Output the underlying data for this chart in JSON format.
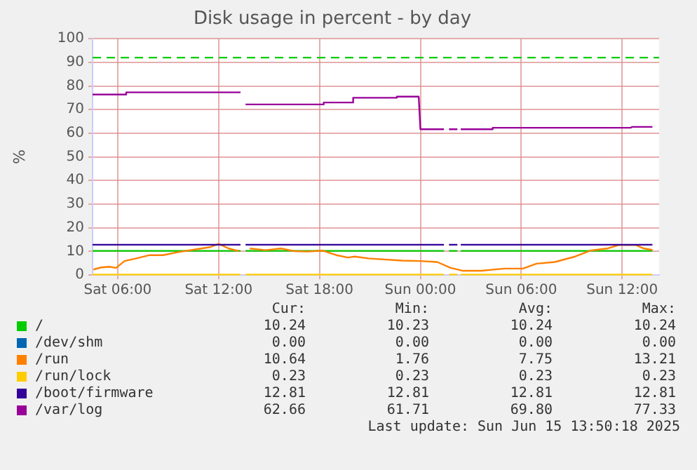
{
  "chart_data": {
    "type": "line",
    "title": "Disk usage in percent - by day",
    "ylabel": "%",
    "xlim": [
      "2025-06-14T04:30",
      "2025-06-15T14:12"
    ],
    "xticks": [
      {
        "value": "2025-06-14T06:00",
        "label": "Sat 06:00"
      },
      {
        "value": "2025-06-14T12:00",
        "label": "Sat 12:00"
      },
      {
        "value": "2025-06-14T18:00",
        "label": "Sat 18:00"
      },
      {
        "value": "2025-06-15T00:00",
        "label": "Sun 00:00"
      },
      {
        "value": "2025-06-15T06:00",
        "label": "Sun 06:00"
      },
      {
        "value": "2025-06-15T12:00",
        "label": "Sun 12:00"
      }
    ],
    "ylim": [
      0,
      100
    ],
    "yticks": [
      0,
      10,
      20,
      30,
      40,
      50,
      60,
      70,
      80,
      90,
      100
    ],
    "grid": true,
    "legend": "bottom",
    "marker": "none",
    "line_style": "solid",
    "series": [
      {
        "name": "/",
        "color": "#00cc00",
        "x": [
          "2025-06-14T04:30",
          "2025-06-14T13:18",
          "2025-06-14T13:27",
          "2025-06-14T13:36",
          "2025-06-15T01:24",
          "2025-06-15T01:30",
          "2025-06-15T01:42",
          "2025-06-15T02:12",
          "2025-06-15T02:18",
          "2025-06-15T02:24",
          "2025-06-15T13:48"
        ],
        "values": [
          10.2,
          10.2,
          null,
          10.2,
          10.2,
          null,
          10.2,
          10.2,
          null,
          10.2,
          10.2
        ]
      },
      {
        "name": "/dev/shm",
        "color": "#0066b3"
      },
      {
        "name": "/run",
        "color": "#ff8000",
        "x": [
          "2025-06-14T04:33",
          "2025-06-14T05:00",
          "2025-06-14T05:30",
          "2025-06-14T05:54",
          "2025-06-14T06:24",
          "2025-06-14T07:06",
          "2025-06-14T07:54",
          "2025-06-14T08:42",
          "2025-06-14T09:36",
          "2025-06-14T10:42",
          "2025-06-14T11:30",
          "2025-06-14T12:00",
          "2025-06-14T12:36",
          "2025-06-14T13:12",
          "2025-06-14T13:27",
          "2025-06-14T13:51",
          "2025-06-14T14:48",
          "2025-06-14T15:42",
          "2025-06-14T16:30",
          "2025-06-14T17:18",
          "2025-06-14T18:12",
          "2025-06-14T19:00",
          "2025-06-14T19:42",
          "2025-06-14T20:06",
          "2025-06-14T20:54",
          "2025-06-14T22:54",
          "2025-06-15T00:00",
          "2025-06-15T01:00",
          "2025-06-15T01:48",
          "2025-06-15T02:30",
          "2025-06-15T03:36",
          "2025-06-15T05:00",
          "2025-06-15T06:06",
          "2025-06-15T06:54",
          "2025-06-15T08:00",
          "2025-06-15T09:12",
          "2025-06-15T10:06",
          "2025-06-15T11:06",
          "2025-06-15T11:48",
          "2025-06-15T12:48",
          "2025-06-15T13:18",
          "2025-06-15T13:48"
        ],
        "values": [
          2.3,
          3.2,
          3.5,
          3.0,
          5.9,
          7.0,
          8.4,
          8.4,
          9.7,
          10.9,
          11.8,
          13.2,
          11.2,
          10.1,
          null,
          11.2,
          10.5,
          11.2,
          10.1,
          9.9,
          10.3,
          8.4,
          7.4,
          7.8,
          7.0,
          6.1,
          5.9,
          5.5,
          3.0,
          1.8,
          1.8,
          2.7,
          2.7,
          4.8,
          5.5,
          7.8,
          10.3,
          11.2,
          12.7,
          12.7,
          11.2,
          10.6
        ]
      },
      {
        "name": "/run/lock",
        "color": "#ffcc00",
        "x": [
          "2025-06-14T04:30",
          "2025-06-14T13:18",
          "2025-06-14T13:27",
          "2025-06-14T13:36",
          "2025-06-15T01:24",
          "2025-06-15T01:30",
          "2025-06-15T01:42",
          "2025-06-15T02:12",
          "2025-06-15T02:18",
          "2025-06-15T02:24",
          "2025-06-15T13:48"
        ],
        "values": [
          0.2,
          0.2,
          null,
          0.2,
          0.2,
          null,
          0.2,
          0.2,
          null,
          0.2,
          0.2
        ]
      },
      {
        "name": "/boot/firmware",
        "color": "#330099",
        "x": [
          "2025-06-14T04:30",
          "2025-06-14T13:18",
          "2025-06-14T13:27",
          "2025-06-14T13:36",
          "2025-06-15T01:24",
          "2025-06-15T01:30",
          "2025-06-15T01:42",
          "2025-06-15T02:12",
          "2025-06-15T02:18",
          "2025-06-15T02:24",
          "2025-06-15T13:48"
        ],
        "values": [
          12.8,
          12.8,
          null,
          12.8,
          12.8,
          null,
          12.8,
          12.8,
          null,
          12.8,
          12.8
        ]
      },
      {
        "name": "/var/log",
        "color": "#990099",
        "x": [
          "2025-06-14T04:30",
          "2025-06-14T06:30",
          "2025-06-14T06:30",
          "2025-06-14T13:18",
          "2025-06-14T13:27",
          "2025-06-14T13:36",
          "2025-06-14T18:15",
          "2025-06-14T18:15",
          "2025-06-14T20:00",
          "2025-06-14T20:00",
          "2025-06-14T22:36",
          "2025-06-14T22:36",
          "2025-06-14T23:54",
          "2025-06-15T00:00",
          "2025-06-15T01:24",
          "2025-06-15T01:30",
          "2025-06-15T01:42",
          "2025-06-15T02:12",
          "2025-06-15T02:18",
          "2025-06-15T02:24",
          "2025-06-15T04:18",
          "2025-06-15T04:18",
          "2025-06-15T12:30",
          "2025-06-15T12:36",
          "2025-06-15T13:48"
        ],
        "values": [
          76.4,
          76.4,
          77.3,
          77.3,
          null,
          72.2,
          72.2,
          73.0,
          73.0,
          75.0,
          75.0,
          75.5,
          75.5,
          61.7,
          61.7,
          null,
          61.7,
          61.7,
          null,
          61.7,
          61.7,
          62.3,
          62.3,
          62.7,
          62.7
        ]
      }
    ],
    "ref_lines": [
      {
        "axis": "y",
        "value": 92,
        "color": "#00cc00",
        "line_style": "dashed"
      }
    ],
    "annotations": [
      "Cur:",
      "Min:",
      "Avg:",
      "Max:",
      "10.24",
      "10.23",
      "10.24",
      "10.24",
      "0.00",
      "0.00",
      "0.00",
      "0.00",
      "10.64",
      "1.76",
      "7.75",
      "13.21",
      "0.23",
      "0.23",
      "0.23",
      "0.23",
      "12.81",
      "12.81",
      "12.81",
      "12.81",
      "62.66",
      "61.71",
      "69.80",
      "77.33",
      "Last update: Sun Jun 15 13:50:18 2025"
    ]
  }
}
